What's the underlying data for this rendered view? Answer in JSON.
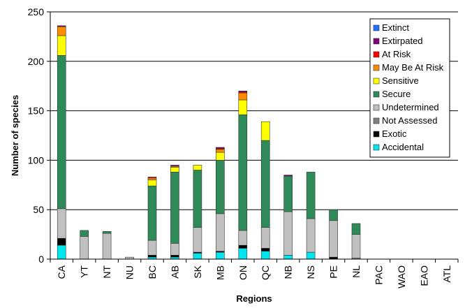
{
  "chart_data": {
    "type": "bar",
    "stacked": true,
    "title": "",
    "xlabel": "Regions",
    "ylabel": "Number of species",
    "ylim": [
      0,
      250
    ],
    "yticks": [
      0,
      50,
      100,
      150,
      200,
      250
    ],
    "grid": true,
    "legend_position": "top-right",
    "categories": [
      "CA",
      "YT",
      "NT",
      "NU",
      "BC",
      "AB",
      "SK",
      "MB",
      "ON",
      "QC",
      "NB",
      "NS",
      "PE",
      "NL",
      "PAC",
      "WAO",
      "EAO",
      "ATL"
    ],
    "series": [
      {
        "name": "Accidental",
        "color": "#00e5ee",
        "values": [
          14,
          0,
          0,
          0,
          2,
          2,
          6,
          7,
          11,
          8,
          4,
          7,
          0,
          0,
          0,
          0,
          0,
          0
        ]
      },
      {
        "name": "Exotic",
        "color": "#000000",
        "values": [
          7,
          0,
          0,
          0,
          2,
          2,
          1,
          1,
          3,
          3,
          0,
          0,
          2,
          0,
          0,
          0,
          0,
          0
        ]
      },
      {
        "name": "Not Assessed",
        "color": "#808080",
        "values": [
          0,
          0,
          0,
          0,
          0,
          0,
          0,
          0,
          0,
          0,
          0,
          0,
          0,
          1,
          0,
          0,
          0,
          0
        ]
      },
      {
        "name": "Undetermined",
        "color": "#c0c0c0",
        "values": [
          30,
          23,
          26,
          2,
          15,
          12,
          25,
          38,
          15,
          21,
          44,
          34,
          37,
          24,
          0,
          0,
          0,
          0
        ]
      },
      {
        "name": "Secure",
        "color": "#2e8b57",
        "values": [
          155,
          6,
          2,
          0,
          55,
          72,
          58,
          54,
          117,
          88,
          36,
          47,
          11,
          11,
          0,
          0,
          0,
          0
        ]
      },
      {
        "name": "Sensitive",
        "color": "#ffff00",
        "values": [
          20,
          0,
          0,
          0,
          6,
          5,
          5,
          8,
          15,
          19,
          0,
          0,
          0,
          0,
          0,
          0,
          0,
          0
        ]
      },
      {
        "name": "May Be At Risk",
        "color": "#ff8c00",
        "values": [
          9,
          0,
          0,
          0,
          2,
          1,
          0,
          3,
          7,
          0,
          0,
          0,
          0,
          0,
          0,
          0,
          0,
          0
        ]
      },
      {
        "name": "At Risk",
        "color": "#ff0000",
        "values": [
          0,
          0,
          0,
          0,
          1,
          0,
          0,
          1,
          1,
          0,
          0,
          0,
          0,
          0,
          0,
          0,
          0,
          0
        ]
      },
      {
        "name": "Extirpated",
        "color": "#800080",
        "values": [
          1,
          0,
          0,
          0,
          0,
          1,
          0,
          1,
          1,
          0,
          1,
          0,
          0,
          0,
          0,
          0,
          0,
          0
        ]
      },
      {
        "name": "Extinct",
        "color": "#1e6fff",
        "values": [
          0,
          0,
          0,
          0,
          0,
          0,
          0,
          0,
          0,
          0,
          0,
          0,
          0,
          0,
          0,
          0,
          0,
          0
        ]
      }
    ]
  }
}
